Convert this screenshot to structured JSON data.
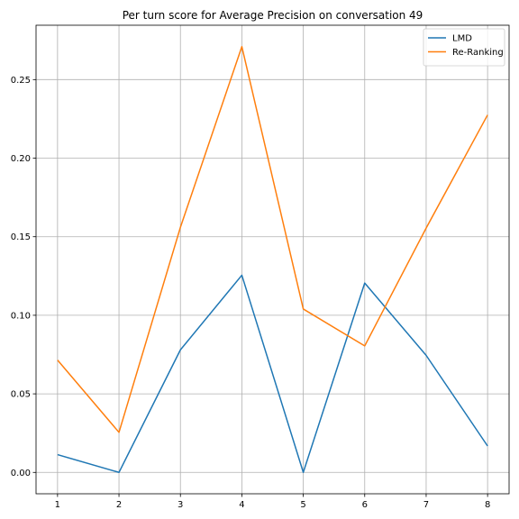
{
  "chart_data": {
    "type": "line",
    "title": "Per turn score for Average Precision on conversation 49",
    "xlabel": "",
    "ylabel": "",
    "x": [
      1,
      2,
      3,
      4,
      5,
      6,
      7,
      8
    ],
    "xticks": [
      "1",
      "2",
      "3",
      "4",
      "5",
      "6",
      "7",
      "8"
    ],
    "xlim": [
      0.65,
      8.35
    ],
    "yticks": [
      "0.00",
      "0.05",
      "0.10",
      "0.15",
      "0.20",
      "0.25"
    ],
    "ylim": [
      -0.0136,
      0.2846
    ],
    "grid": true,
    "legend_position": "top-right",
    "series": [
      {
        "name": "LMD",
        "color": "#1f77b4",
        "values": [
          0.0113,
          0.0,
          0.078,
          0.1255,
          0.0,
          0.1205,
          0.0745,
          0.0168
        ]
      },
      {
        "name": "Re-Ranking",
        "color": "#ff7f0e",
        "values": [
          0.0715,
          0.0255,
          0.156,
          0.271,
          0.104,
          0.0805,
          0.1555,
          0.2275
        ]
      }
    ]
  }
}
